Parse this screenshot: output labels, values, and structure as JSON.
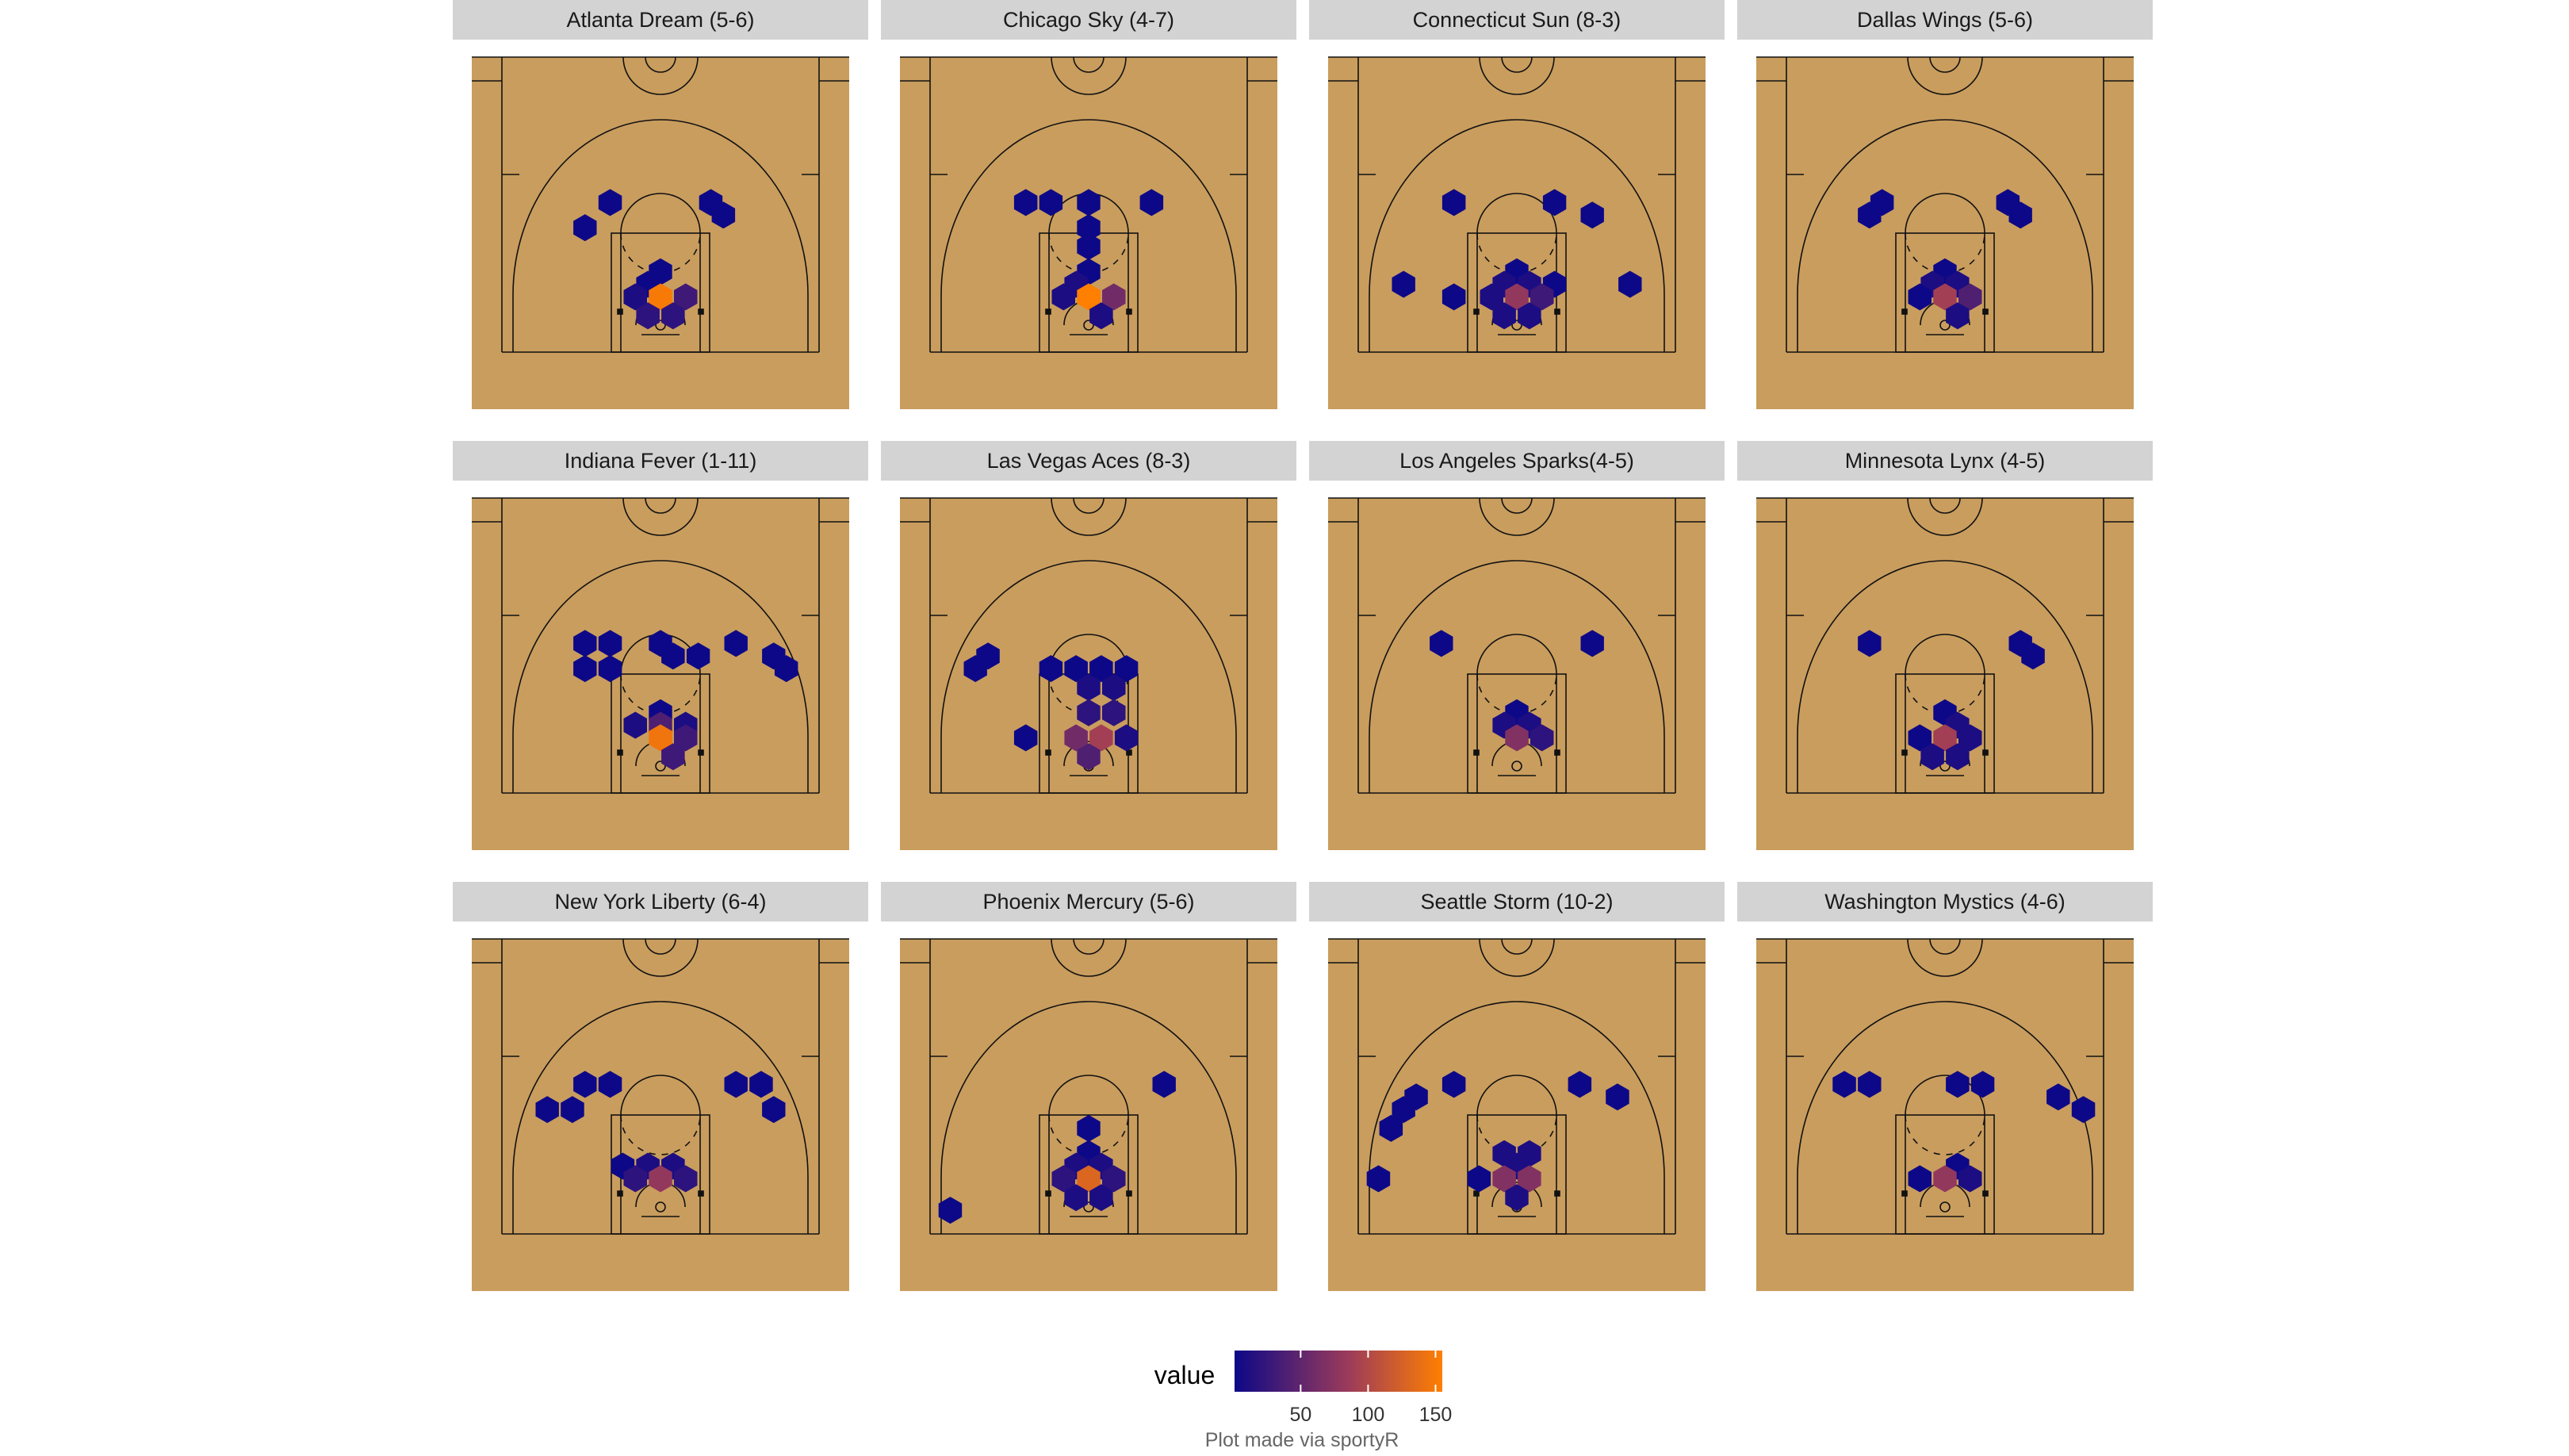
{
  "chart_data": {
    "type": "heatmap",
    "colorbar": {
      "title": "value",
      "ticks": [
        50,
        100,
        150
      ],
      "range": [
        1,
        155
      ],
      "colors": [
        "#0d0887",
        "#9c3b5a",
        "#ff7f00"
      ]
    },
    "caption": "Plot made via sportyR",
    "colors": {
      "court": "#c99d5e",
      "strip": "#d3d3d3",
      "lines": "#111111"
    },
    "panels": [
      {
        "title": "Atlanta Dream (5-6)",
        "hexes": [
          [
            -8,
            21,
            1
          ],
          [
            8,
            21,
            1
          ],
          [
            10,
            19,
            1
          ],
          [
            -12,
            17,
            1
          ],
          [
            0,
            10,
            1
          ],
          [
            -2,
            8,
            1
          ],
          [
            -4,
            6,
            10
          ],
          [
            0,
            6,
            150
          ],
          [
            4,
            6,
            30
          ],
          [
            -2,
            3,
            20
          ],
          [
            2,
            3,
            20
          ]
        ]
      },
      {
        "title": "Chicago Sky (4-7)",
        "hexes": [
          [
            -10,
            21,
            1
          ],
          [
            -6,
            21,
            1
          ],
          [
            0,
            21,
            1
          ],
          [
            10,
            21,
            1
          ],
          [
            0,
            17,
            1
          ],
          [
            0,
            14,
            1
          ],
          [
            0,
            10,
            1
          ],
          [
            -2,
            8,
            10
          ],
          [
            -4,
            6,
            10
          ],
          [
            0,
            6,
            155
          ],
          [
            4,
            6,
            60
          ],
          [
            2,
            3,
            10
          ]
        ]
      },
      {
        "title": "Connecticut Sun (8-3)",
        "hexes": [
          [
            -10,
            21,
            1
          ],
          [
            6,
            21,
            1
          ],
          [
            12,
            19,
            1
          ],
          [
            -18,
            8,
            1
          ],
          [
            18,
            8,
            1
          ],
          [
            -10,
            6,
            1
          ],
          [
            0,
            10,
            1
          ],
          [
            -2,
            8,
            10
          ],
          [
            2,
            8,
            10
          ],
          [
            6,
            8,
            1
          ],
          [
            -4,
            6,
            10
          ],
          [
            0,
            6,
            80
          ],
          [
            4,
            6,
            30
          ],
          [
            -2,
            3,
            10
          ],
          [
            2,
            3,
            10
          ]
        ]
      },
      {
        "title": "Dallas Wings (5-6)",
        "hexes": [
          [
            -10,
            21,
            1
          ],
          [
            10,
            21,
            1
          ],
          [
            -12,
            19,
            1
          ],
          [
            12,
            19,
            1
          ],
          [
            0,
            10,
            1
          ],
          [
            -2,
            8,
            10
          ],
          [
            2,
            8,
            10
          ],
          [
            -4,
            6,
            1
          ],
          [
            0,
            6,
            90
          ],
          [
            4,
            6,
            40
          ],
          [
            2,
            3,
            10
          ]
        ]
      },
      {
        "title": "Indiana Fever (1-11)",
        "hexes": [
          [
            -12,
            21,
            1
          ],
          [
            -8,
            21,
            1
          ],
          [
            0,
            21,
            1
          ],
          [
            12,
            21,
            1
          ],
          [
            2,
            19,
            1
          ],
          [
            6,
            19,
            1
          ],
          [
            18,
            19,
            1
          ],
          [
            -12,
            17,
            1
          ],
          [
            -8,
            17,
            1
          ],
          [
            20,
            17,
            1
          ],
          [
            0,
            10,
            1
          ],
          [
            -4,
            8,
            10
          ],
          [
            0,
            8,
            40
          ],
          [
            4,
            8,
            10
          ],
          [
            0,
            6,
            145
          ],
          [
            4,
            6,
            30
          ],
          [
            2,
            3,
            30
          ]
        ]
      },
      {
        "title": "Las Vegas Aces (8-3)",
        "hexes": [
          [
            -16,
            19,
            1
          ],
          [
            -18,
            17,
            1
          ],
          [
            -6,
            17,
            1
          ],
          [
            -2,
            17,
            1
          ],
          [
            2,
            17,
            1
          ],
          [
            6,
            17,
            1
          ],
          [
            0,
            14,
            10
          ],
          [
            4,
            14,
            10
          ],
          [
            0,
            10,
            20
          ],
          [
            4,
            10,
            20
          ],
          [
            -10,
            6,
            1
          ],
          [
            -2,
            6,
            60
          ],
          [
            2,
            6,
            90
          ],
          [
            6,
            6,
            10
          ],
          [
            0,
            3,
            40
          ]
        ]
      },
      {
        "title": "Los Angeles Sparks(4-5)",
        "hexes": [
          [
            -12,
            21,
            1
          ],
          [
            12,
            21,
            1
          ],
          [
            0,
            10,
            1
          ],
          [
            -2,
            8,
            10
          ],
          [
            2,
            8,
            10
          ],
          [
            0,
            6,
            70
          ],
          [
            4,
            6,
            20
          ]
        ]
      },
      {
        "title": "Minnesota Lynx (4-5)",
        "hexes": [
          [
            -12,
            21,
            1
          ],
          [
            12,
            21,
            1
          ],
          [
            14,
            19,
            1
          ],
          [
            0,
            10,
            1
          ],
          [
            2,
            8,
            10
          ],
          [
            -4,
            6,
            1
          ],
          [
            0,
            6,
            90
          ],
          [
            4,
            6,
            10
          ],
          [
            -2,
            3,
            10
          ],
          [
            2,
            3,
            10
          ]
        ]
      },
      {
        "title": "New York Liberty (6-4)",
        "hexes": [
          [
            -12,
            21,
            1
          ],
          [
            -8,
            21,
            1
          ],
          [
            12,
            21,
            1
          ],
          [
            16,
            21,
            1
          ],
          [
            -18,
            17,
            1
          ],
          [
            -14,
            17,
            1
          ],
          [
            18,
            17,
            1
          ],
          [
            -6,
            8,
            1
          ],
          [
            -2,
            8,
            10
          ],
          [
            2,
            8,
            10
          ],
          [
            -4,
            6,
            20
          ],
          [
            0,
            6,
            80
          ],
          [
            4,
            6,
            20
          ]
        ]
      },
      {
        "title": "Phoenix Mercury (5-6)",
        "hexes": [
          [
            12,
            21,
            1
          ],
          [
            0,
            14,
            1
          ],
          [
            0,
            10,
            1
          ],
          [
            -2,
            8,
            10
          ],
          [
            2,
            8,
            10
          ],
          [
            -22,
            1,
            1
          ],
          [
            -4,
            6,
            20
          ],
          [
            0,
            6,
            130
          ],
          [
            4,
            6,
            20
          ],
          [
            -2,
            3,
            10
          ],
          [
            2,
            3,
            10
          ]
        ]
      },
      {
        "title": "Seattle Storm (10-2)",
        "hexes": [
          [
            -10,
            21,
            1
          ],
          [
            10,
            21,
            1
          ],
          [
            16,
            19,
            1
          ],
          [
            -16,
            19,
            1
          ],
          [
            -18,
            17,
            1
          ],
          [
            -20,
            14,
            1
          ],
          [
            -22,
            6,
            1
          ],
          [
            -6,
            6,
            1
          ],
          [
            -2,
            10,
            10
          ],
          [
            2,
            10,
            10
          ],
          [
            0,
            8,
            10
          ],
          [
            -2,
            6,
            70
          ],
          [
            2,
            6,
            70
          ],
          [
            0,
            3,
            10
          ]
        ]
      },
      {
        "title": "Washington Mystics (4-6)",
        "hexes": [
          [
            -16,
            21,
            1
          ],
          [
            -12,
            21,
            1
          ],
          [
            2,
            21,
            1
          ],
          [
            6,
            21,
            1
          ],
          [
            18,
            19,
            1
          ],
          [
            22,
            17,
            1
          ],
          [
            2,
            8,
            1
          ],
          [
            -4,
            6,
            1
          ],
          [
            0,
            6,
            80
          ],
          [
            4,
            6,
            10
          ]
        ]
      }
    ]
  }
}
